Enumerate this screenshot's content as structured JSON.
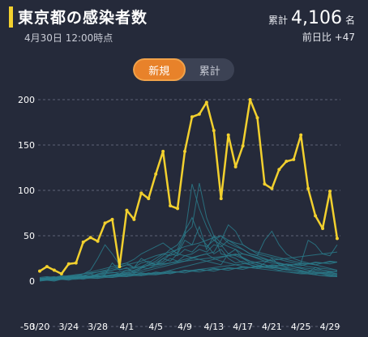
{
  "header": {
    "title": "東京都の感染者数",
    "subtitle": "4月30日 12:00時点",
    "total_label": "累計",
    "total_value": "4,106",
    "total_unit": "名",
    "diff_text": "前日比 +47"
  },
  "toggle": {
    "new_label": "新規",
    "total_label": "累計",
    "active": "新規"
  },
  "colors": {
    "tokyo_line": "#f2d02e",
    "other_lines": "#2a7a8a",
    "accent": "#e8822a",
    "background": "#252a3a"
  },
  "chart_data": {
    "type": "line",
    "x_tick_labels": [
      "3/20",
      "3/24",
      "3/28",
      "4/1",
      "4/5",
      "4/9",
      "4/13",
      "4/17",
      "4/21",
      "4/25",
      "4/29"
    ],
    "y_ticks": [
      -50,
      0,
      50,
      100,
      150,
      200
    ],
    "ylim": [
      -50,
      200
    ],
    "grid": true,
    "x_start": "3/20",
    "series": [
      {
        "values": [
          11,
          16,
          12,
          8,
          19,
          20,
          43,
          48,
          44,
          64,
          68,
          16,
          78,
          68,
          97,
          91,
          118,
          143,
          83,
          80,
          143,
          181,
          184,
          197,
          166,
          91,
          161,
          126,
          149,
          200,
          180,
          107,
          102,
          123,
          132,
          134,
          161,
          102,
          72,
          58,
          99,
          47
        ]
      }
    ],
    "background_series": [
      [
        2,
        3,
        2,
        4,
        3,
        5,
        6,
        8,
        5,
        7,
        20,
        12,
        15,
        9,
        14,
        18,
        20,
        25,
        22,
        30,
        45,
        40,
        60,
        35,
        50,
        30,
        28,
        25,
        20,
        18,
        16,
        15,
        14,
        12,
        13,
        12,
        10,
        9,
        8,
        9,
        10,
        8
      ],
      [
        3,
        4,
        5,
        3,
        6,
        5,
        8,
        12,
        25,
        40,
        30,
        18,
        20,
        15,
        25,
        20,
        18,
        22,
        30,
        35,
        55,
        70,
        50,
        40,
        30,
        35,
        25,
        20,
        22,
        18,
        15,
        20,
        25,
        18,
        15,
        14,
        12,
        10,
        15,
        12,
        10,
        11
      ],
      [
        1,
        2,
        3,
        4,
        5,
        4,
        6,
        5,
        7,
        9,
        10,
        8,
        12,
        14,
        16,
        20,
        25,
        30,
        28,
        32,
        50,
        107,
        80,
        60,
        45,
        40,
        30,
        28,
        25,
        22,
        20,
        18,
        16,
        15,
        14,
        12,
        11,
        10,
        12,
        10,
        9,
        8
      ],
      [
        2,
        2,
        3,
        3,
        4,
        5,
        5,
        6,
        7,
        8,
        9,
        10,
        12,
        11,
        15,
        18,
        22,
        28,
        35,
        40,
        52,
        60,
        108,
        70,
        50,
        42,
        38,
        35,
        30,
        28,
        25,
        22,
        20,
        19,
        18,
        16,
        15,
        14,
        13,
        12,
        11,
        10
      ],
      [
        1,
        1,
        2,
        2,
        3,
        3,
        4,
        4,
        5,
        6,
        7,
        8,
        9,
        10,
        12,
        14,
        16,
        18,
        20,
        22,
        24,
        26,
        28,
        30,
        32,
        45,
        62,
        55,
        40,
        35,
        30,
        28,
        26,
        24,
        22,
        20,
        18,
        16,
        15,
        14,
        13,
        12
      ],
      [
        4,
        5,
        4,
        6,
        5,
        7,
        6,
        8,
        10,
        12,
        14,
        16,
        18,
        15,
        20,
        22,
        18,
        25,
        30,
        28,
        35,
        32,
        40,
        38,
        45,
        50,
        42,
        38,
        35,
        30,
        28,
        45,
        55,
        40,
        30,
        25,
        22,
        20,
        18,
        16,
        14,
        12
      ],
      [
        2,
        3,
        2,
        3,
        4,
        3,
        5,
        4,
        6,
        5,
        7,
        8,
        10,
        12,
        15,
        14,
        18,
        20,
        25,
        22,
        28,
        30,
        35,
        32,
        40,
        38,
        45,
        42,
        40,
        35,
        32,
        30,
        28,
        26,
        24,
        22,
        20,
        45,
        40,
        30,
        28,
        40
      ],
      [
        1,
        2,
        2,
        3,
        3,
        4,
        4,
        5,
        5,
        6,
        6,
        7,
        8,
        9,
        10,
        12,
        14,
        16,
        18,
        20,
        22,
        25,
        28,
        30,
        25,
        22,
        20,
        18,
        16,
        15,
        14,
        13,
        12,
        11,
        10,
        9,
        8,
        8,
        7,
        6,
        6,
        5
      ],
      [
        3,
        2,
        4,
        3,
        5,
        4,
        6,
        5,
        8,
        10,
        12,
        15,
        18,
        20,
        22,
        25,
        28,
        30,
        32,
        35,
        38,
        40,
        42,
        45,
        48,
        50,
        45,
        40,
        35,
        30,
        28,
        25,
        22,
        20,
        18,
        16,
        14,
        12,
        10,
        9,
        8,
        7
      ],
      [
        2,
        4,
        3,
        5,
        4,
        6,
        8,
        10,
        12,
        14,
        16,
        18,
        20,
        24,
        30,
        34,
        38,
        42,
        36,
        30,
        28,
        26,
        24,
        22,
        20,
        18,
        30,
        35,
        25,
        20,
        18,
        16,
        15,
        14,
        13,
        12,
        11,
        10,
        9,
        8,
        7,
        6
      ],
      [
        1,
        2,
        1,
        3,
        2,
        4,
        3,
        5,
        4,
        6,
        5,
        7,
        6,
        8,
        7,
        9,
        8,
        10,
        12,
        14,
        16,
        18,
        20,
        22,
        24,
        26,
        28,
        30,
        26,
        22,
        20,
        18,
        16,
        14,
        12,
        10,
        9,
        8,
        7,
        6,
        5,
        5
      ],
      [
        2,
        3,
        4,
        5,
        6,
        7,
        8,
        9,
        10,
        11,
        12,
        13,
        14,
        15,
        16,
        17,
        18,
        19,
        20,
        21,
        22,
        23,
        24,
        25,
        26,
        27,
        28,
        29,
        30,
        28,
        26,
        24,
        22,
        20,
        18,
        16,
        14,
        12,
        10,
        8,
        6,
        5
      ],
      [
        3,
        3,
        3,
        4,
        4,
        4,
        5,
        5,
        5,
        6,
        6,
        6,
        7,
        7,
        8,
        8,
        9,
        9,
        10,
        10,
        11,
        11,
        12,
        12,
        13,
        13,
        14,
        14,
        15,
        15,
        16,
        16,
        17,
        17,
        18,
        18,
        19,
        19,
        20,
        20,
        21,
        21
      ],
      [
        1,
        1,
        1,
        2,
        2,
        2,
        3,
        3,
        3,
        4,
        4,
        5,
        5,
        6,
        6,
        7,
        7,
        8,
        9,
        10,
        11,
        12,
        13,
        14,
        15,
        16,
        17,
        18,
        19,
        20,
        21,
        22,
        23,
        24,
        25,
        26,
        27,
        28,
        29,
        30,
        31,
        32
      ],
      [
        2,
        1,
        3,
        2,
        4,
        3,
        5,
        4,
        6,
        5,
        7,
        6,
        8,
        7,
        9,
        8,
        10,
        9,
        11,
        10,
        12,
        11,
        13,
        12,
        14,
        13,
        15,
        14,
        16,
        15,
        17,
        16,
        18,
        17,
        19,
        18,
        20,
        19,
        21,
        20,
        22,
        21
      ],
      [
        0,
        1,
        0,
        2,
        1,
        3,
        2,
        4,
        3,
        5,
        4,
        6,
        5,
        7,
        6,
        8,
        7,
        9,
        8,
        10,
        9,
        11,
        10,
        12,
        11,
        13,
        12,
        14,
        13,
        15,
        14,
        16,
        15,
        17,
        16,
        18,
        17,
        19,
        18,
        20,
        19,
        21
      ]
    ]
  }
}
